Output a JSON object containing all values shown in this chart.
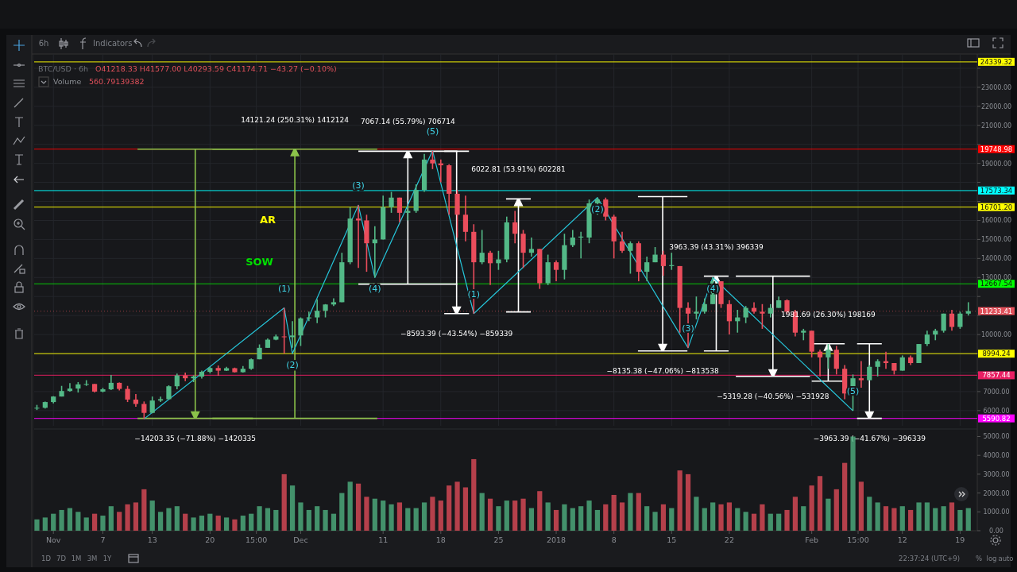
{
  "chart_data": [
    {
      "type": "candlestick",
      "title": "BTC/USD · 6h",
      "subtitle": "O41218.33 H41577.00 L40293.59 C41174.71 −43.27 (−0.10%)",
      "x": [
        "2017-10-30",
        "2017-10-31",
        "2017-11-01",
        "2017-11-02",
        "2017-11-03",
        "2017-11-04",
        "2017-11-05",
        "2017-11-06",
        "2017-11-07",
        "2017-11-08",
        "2017-11-09",
        "2017-11-10",
        "2017-11-11",
        "2017-11-12",
        "2017-11-13",
        "2017-11-14",
        "2017-11-15",
        "2017-11-16",
        "2017-11-17",
        "2017-11-18",
        "2017-11-19",
        "2017-11-20",
        "2017-11-21",
        "2017-11-22",
        "2017-11-23",
        "2017-11-24",
        "2017-11-25",
        "2017-11-26",
        "2017-11-27",
        "2017-11-28",
        "2017-11-29",
        "2017-11-30",
        "2017-12-01",
        "2017-12-02",
        "2017-12-03",
        "2017-12-04",
        "2017-12-05",
        "2017-12-06",
        "2017-12-07",
        "2017-12-08",
        "2017-12-09",
        "2017-12-10",
        "2017-12-11",
        "2017-12-12",
        "2017-12-13",
        "2017-12-14",
        "2017-12-15",
        "2017-12-16",
        "2017-12-17",
        "2017-12-18",
        "2017-12-19",
        "2017-12-20",
        "2017-12-21",
        "2017-12-22",
        "2017-12-23",
        "2017-12-24",
        "2017-12-25",
        "2017-12-26",
        "2017-12-27",
        "2017-12-28",
        "2017-12-29",
        "2017-12-30",
        "2017-12-31",
        "2018-01-01",
        "2018-01-02",
        "2018-01-03",
        "2018-01-04",
        "2018-01-05",
        "2018-01-06",
        "2018-01-07",
        "2018-01-08",
        "2018-01-09",
        "2018-01-10",
        "2018-01-11",
        "2018-01-12",
        "2018-01-13",
        "2018-01-14",
        "2018-01-15",
        "2018-01-16",
        "2018-01-17",
        "2018-01-18",
        "2018-01-19",
        "2018-01-20",
        "2018-01-21",
        "2018-01-22",
        "2018-01-23",
        "2018-01-24",
        "2018-01-25",
        "2018-01-26",
        "2018-01-27",
        "2018-01-28",
        "2018-01-29",
        "2018-01-30",
        "2018-01-31",
        "2018-02-01",
        "2018-02-02",
        "2018-02-03",
        "2018-02-04",
        "2018-02-05",
        "2018-02-06",
        "2018-02-07",
        "2018-02-08",
        "2018-02-09",
        "2018-02-10",
        "2018-02-11",
        "2018-02-12",
        "2018-02-13",
        "2018-02-14",
        "2018-02-15",
        "2018-02-16",
        "2018-02-17",
        "2018-02-18",
        "2018-02-19",
        "2018-02-20"
      ],
      "ohlc": [
        [
          6130,
          6300,
          6030,
          6150
        ],
        [
          6150,
          6470,
          6110,
          6450
        ],
        [
          6450,
          6760,
          6380,
          6740
        ],
        [
          6740,
          7300,
          6740,
          7030
        ],
        [
          7030,
          7450,
          7000,
          7160
        ],
        [
          7160,
          7500,
          6950,
          7380
        ],
        [
          7380,
          7600,
          7300,
          7400
        ],
        [
          7400,
          7400,
          6950,
          7000
        ],
        [
          7000,
          7200,
          6960,
          7120
        ],
        [
          7120,
          7870,
          7080,
          7460
        ],
        [
          7460,
          7480,
          7060,
          7140
        ],
        [
          7140,
          7300,
          6450,
          6580
        ],
        [
          6580,
          6870,
          6200,
          6350
        ],
        [
          6350,
          6480,
          5560,
          5880
        ],
        [
          5880,
          6740,
          5860,
          6530
        ],
        [
          6530,
          6740,
          6450,
          6600
        ],
        [
          6600,
          7330,
          6600,
          7280
        ],
        [
          7280,
          7950,
          7120,
          7850
        ],
        [
          7850,
          8000,
          7550,
          7700
        ],
        [
          7700,
          7850,
          7500,
          7790
        ],
        [
          7790,
          8100,
          7690,
          8040
        ],
        [
          8040,
          8290,
          7960,
          8240
        ],
        [
          8240,
          8370,
          7830,
          8100
        ],
        [
          8100,
          8300,
          8080,
          8230
        ],
        [
          8230,
          8260,
          8000,
          8020
        ],
        [
          8020,
          8340,
          8000,
          8200
        ],
        [
          8200,
          8740,
          8150,
          8700
        ],
        [
          8700,
          9480,
          8700,
          9300
        ],
        [
          9300,
          9800,
          9300,
          9730
        ],
        [
          9730,
          10000,
          9700,
          9900
        ],
        [
          9900,
          11400,
          9000,
          9860
        ],
        [
          9860,
          10700,
          9300,
          9950
        ],
        [
          9950,
          10900,
          9400,
          10850
        ],
        [
          10850,
          11200,
          10700,
          10900
        ],
        [
          10900,
          11850,
          10600,
          11250
        ],
        [
          11250,
          11600,
          10900,
          11580
        ],
        [
          11580,
          11900,
          11500,
          11700
        ],
        [
          11700,
          14300,
          11700,
          13800
        ],
        [
          13800,
          16700,
          13700,
          16100
        ],
        [
          16100,
          16800,
          13500,
          16000
        ],
        [
          16000,
          16300,
          13300,
          14800
        ],
        [
          14800,
          15700,
          13000,
          15000
        ],
        [
          15000,
          17300,
          15000,
          16700
        ],
        [
          16700,
          17500,
          16400,
          17200
        ],
        [
          17200,
          17200,
          15900,
          16400
        ],
        [
          16400,
          16800,
          16000,
          16500
        ],
        [
          16500,
          17900,
          16400,
          17600
        ],
        [
          17600,
          19500,
          17500,
          19200
        ],
        [
          19200,
          19666,
          18700,
          19000
        ],
        [
          19000,
          19200,
          18000,
          18900
        ],
        [
          18900,
          18950,
          16300,
          17400
        ],
        [
          17400,
          17600,
          15100,
          16300
        ],
        [
          16300,
          17300,
          14900,
          15400
        ],
        [
          15400,
          15800,
          11100,
          13800
        ],
        [
          13800,
          15500,
          13700,
          14300
        ],
        [
          14300,
          14400,
          12600,
          13750
        ],
        [
          13750,
          14400,
          13400,
          13950
        ],
        [
          13950,
          16200,
          13800,
          15900
        ],
        [
          15900,
          16500,
          14800,
          15300
        ],
        [
          15300,
          15500,
          13500,
          14300
        ],
        [
          14300,
          15100,
          14100,
          14500
        ],
        [
          14500,
          14500,
          12400,
          12700
        ],
        [
          12700,
          14200,
          12600,
          13800
        ],
        [
          13800,
          13900,
          12800,
          13400
        ],
        [
          13400,
          15300,
          12900,
          14700
        ],
        [
          14700,
          15500,
          14600,
          15100
        ],
        [
          15100,
          15400,
          14000,
          15150
        ],
        [
          15100,
          17100,
          14800,
          16900
        ],
        [
          16900,
          17200,
          16300,
          17100
        ],
        [
          17100,
          17200,
          16000,
          16200
        ],
        [
          16200,
          16300,
          14000,
          14900
        ],
        [
          14900,
          15400,
          14300,
          14400
        ],
        [
          14400,
          14900,
          13200,
          14800
        ],
        [
          14800,
          14900,
          12800,
          13300
        ],
        [
          13300,
          14100,
          12800,
          13800
        ],
        [
          13800,
          14600,
          13800,
          14200
        ],
        [
          14200,
          14400,
          13100,
          13600
        ],
        [
          13600,
          14300,
          13400,
          13650
        ],
        [
          13600,
          13600,
          10100,
          11400
        ],
        [
          11400,
          11700,
          9300,
          11100
        ],
        [
          11100,
          12000,
          10800,
          11200
        ],
        [
          11200,
          11900,
          11100,
          11600
        ],
        [
          11600,
          13000,
          11600,
          12800
        ],
        [
          12800,
          12800,
          11400,
          11600
        ],
        [
          11600,
          11800,
          10000,
          10700
        ],
        [
          10700,
          11300,
          10100,
          10900
        ],
        [
          10900,
          11500,
          10600,
          11400
        ],
        [
          11400,
          11700,
          11100,
          11200
        ],
        [
          11200,
          11600,
          10300,
          11100
        ],
        [
          11100,
          11600,
          10900,
          11400
        ],
        [
          11400,
          12000,
          11400,
          11800
        ],
        [
          11800,
          11850,
          11100,
          11200
        ],
        [
          11200,
          11300,
          9900,
          10100
        ],
        [
          10100,
          10300,
          9700,
          10200
        ],
        [
          10200,
          10200,
          8800,
          9100
        ],
        [
          9100,
          9200,
          7800,
          8800
        ],
        [
          8800,
          9500,
          8200,
          9200
        ],
        [
          9200,
          9400,
          7900,
          8200
        ],
        [
          8200,
          8400,
          6600,
          6900
        ],
        [
          6900,
          7900,
          5990,
          7700
        ],
        [
          7700,
          8600,
          7200,
          7600
        ],
        [
          7600,
          8400,
          7600,
          8300
        ],
        [
          8300,
          8700,
          7800,
          8600
        ],
        [
          8600,
          9100,
          8200,
          8500
        ],
        [
          8500,
          8500,
          7900,
          8100
        ],
        [
          8100,
          8900,
          8100,
          8800
        ],
        [
          8800,
          8900,
          8400,
          8500
        ],
        [
          8500,
          9500,
          8500,
          9500
        ],
        [
          9500,
          10200,
          9400,
          10000
        ],
        [
          10000,
          10300,
          9700,
          10200
        ],
        [
          10200,
          11100,
          10100,
          11100
        ],
        [
          11100,
          11300,
          10200,
          10400
        ],
        [
          10400,
          11200,
          10300,
          11100
        ],
        [
          11100,
          11700,
          11000,
          11233.41
        ]
      ],
      "series": [
        {
          "type": "line",
          "color": "#26c6da",
          "x": [
            "2017-11-12",
            "2017-11-29",
            "2017-11-30",
            "2017-12-08",
            "2017-12-10",
            "2017-12-17",
            "2017-12-22",
            "2018-01-06",
            "2018-01-17",
            "2018-01-20",
            "2018-02-06"
          ],
          "values": [
            5560,
            11400,
            9000,
            16800,
            13000,
            19670,
            11100,
            17200,
            9300,
            13000,
            5990
          ]
        }
      ],
      "xlim": [
        "2017-10-29T16:00",
        "2018-02-21T02:00"
      ],
      "xticks": [
        {
          "value": "2017-11-01",
          "label": null
        },
        {
          "value": "2017-11-07",
          "label": null
        },
        {
          "value": "2017-11-13",
          "label": null
        },
        {
          "value": "2017-11-20",
          "label": null
        },
        {
          "value": "2017-11-25T15:00",
          "label": null
        },
        {
          "value": "2017-12-01",
          "label": null
        },
        {
          "value": "2017-12-11",
          "label": null
        },
        {
          "value": "2017-12-18",
          "label": null
        },
        {
          "value": "2017-12-25",
          "label": null
        },
        {
          "value": "2018-01-01",
          "label": null
        },
        {
          "value": "2018-01-08",
          "label": null
        },
        {
          "value": "2018-01-15",
          "label": null
        },
        {
          "value": "2018-01-22",
          "label": null
        },
        {
          "value": "2018-02-01",
          "label": null
        },
        {
          "value": "2018-02-06T15:00",
          "label": null
        },
        {
          "value": "2018-02-12",
          "label": null
        },
        {
          "value": "2018-02-19",
          "label": null
        }
      ],
      "ylim": [
        5200,
        24750
      ],
      "yticks": [
        {
          "value": 6000,
          "label": "6000.00"
        },
        {
          "value": 7000,
          "label": "7000.00"
        },
        {
          "value": 8000,
          "label": null
        },
        {
          "value": 9000,
          "label": null
        },
        {
          "value": 10000,
          "label": "10000.00"
        },
        {
          "value": 11000,
          "label": null
        },
        {
          "value": 12000,
          "label": null
        },
        {
          "value": 13000,
          "label": "13000.00"
        },
        {
          "value": 14000,
          "label": "14000.00"
        },
        {
          "value": 15000,
          "label": "15000.00"
        },
        {
          "value": 16000,
          "label": "16000.00"
        },
        {
          "value": 17000,
          "label": null
        },
        {
          "value": 18000,
          "label": null
        },
        {
          "value": 19000,
          "label": "19000.00"
        },
        {
          "value": 20000,
          "label": null
        },
        {
          "value": 21000,
          "label": "21000.00"
        },
        {
          "value": 22000,
          "label": "22000.00"
        },
        {
          "value": 23000,
          "label": "23000.00"
        },
        {
          "value": 24000,
          "label": null
        }
      ],
      "tick_labels": "y",
      "grid": true,
      "ref_lines": [
        {
          "axis": "y",
          "value": 24339.32,
          "label": "24339.32",
          "color": "#ffff00"
        },
        {
          "axis": "y",
          "value": 19748.98,
          "label": "19748.98",
          "color": "#ff0000"
        },
        {
          "axis": "y",
          "value": 17573.34,
          "label": "17573.34",
          "color": "#00ffff"
        },
        {
          "axis": "y",
          "value": 16701.2,
          "label": "16701.20",
          "color": "#ffff00"
        },
        {
          "axis": "y",
          "value": 12667.54,
          "label": "12667.54",
          "color": "#00ff00"
        },
        {
          "axis": "y",
          "value": 11233.41,
          "label": "11233.41",
          "color": "#e0505a",
          "line_style": "dotted"
        },
        {
          "axis": "y",
          "value": 8994.24,
          "label": "8994.24",
          "color": "#ffff00"
        },
        {
          "axis": "y",
          "value": 7857.44,
          "label": "7857.44",
          "color": "#e91e63"
        },
        {
          "axis": "y",
          "value": 5590.82,
          "label": "5590.82",
          "color": "#ff00ff"
        }
      ],
      "annotations": [
        {
          "text": "(1)",
          "x": "2017-11-29",
          "y": 11400
        },
        {
          "text": "(2)",
          "x": "2017-11-30",
          "y": 9000
        },
        {
          "text": "(3)",
          "x": "2017-12-08",
          "y": 16800
        },
        {
          "text": "(4)",
          "x": "2017-12-10",
          "y": 13000
        },
        {
          "text": "(5)",
          "x": "2017-12-17",
          "y": 19670
        },
        {
          "text": "(1)",
          "x": "2017-12-22",
          "y": 11100
        },
        {
          "text": "(2)",
          "x": "2018-01-06",
          "y": 17200
        },
        {
          "text": "(3)",
          "x": "2018-01-17",
          "y": 9300
        },
        {
          "text": "(4)",
          "x": "2018-01-20",
          "y": 13000
        },
        {
          "text": "(5)",
          "x": "2018-02-06",
          "y": 5990
        },
        "14121.24 (250.31%) 1412124",
        "−14203.35 (−71.88%) −1420335",
        "7067.14 (55.79%) 706714",
        "−8593.39 (−43.54%) −859339",
        "6022.81 (53.91%) 602281",
        "3963.39 (43.31%) 396339",
        "−8135.38 (−47.06%) −813538",
        "−5319.28 (−40.56%) −531928",
        "1981.69 (26.30%) 198169",
        "−3963.39 (−41.67%) −396339",
        "AR",
        "SOW"
      ]
    },
    {
      "type": "bar",
      "title": "Volume",
      "subtitle": "560.79139382",
      "x": [
        "2017-10-30",
        "2017-10-31",
        "2017-11-01",
        "2017-11-02",
        "2017-11-03",
        "2017-11-04",
        "2017-11-05",
        "2017-11-06",
        "2017-11-07",
        "2017-11-08",
        "2017-11-09",
        "2017-11-10",
        "2017-11-11",
        "2017-11-12",
        "2017-11-13",
        "2017-11-14",
        "2017-11-15",
        "2017-11-16",
        "2017-11-17",
        "2017-11-18",
        "2017-11-19",
        "2017-11-20",
        "2017-11-21",
        "2017-11-22",
        "2017-11-23",
        "2017-11-24",
        "2017-11-25",
        "2017-11-26",
        "2017-11-27",
        "2017-11-28",
        "2017-11-29",
        "2017-11-30",
        "2017-12-01",
        "2017-12-02",
        "2017-12-03",
        "2017-12-04",
        "2017-12-05",
        "2017-12-06",
        "2017-12-07",
        "2017-12-08",
        "2017-12-09",
        "2017-12-10",
        "2017-12-11",
        "2017-12-12",
        "2017-12-13",
        "2017-12-14",
        "2017-12-15",
        "2017-12-16",
        "2017-12-17",
        "2017-12-18",
        "2017-12-19",
        "2017-12-20",
        "2017-12-21",
        "2017-12-22",
        "2017-12-23",
        "2017-12-24",
        "2017-12-25",
        "2017-12-26",
        "2017-12-27",
        "2017-12-28",
        "2017-12-29",
        "2017-12-30",
        "2017-12-31",
        "2018-01-01",
        "2018-01-02",
        "2018-01-03",
        "2018-01-04",
        "2018-01-05",
        "2018-01-06",
        "2018-01-07",
        "2018-01-08",
        "2018-01-09",
        "2018-01-10",
        "2018-01-11",
        "2018-01-12",
        "2018-01-13",
        "2018-01-14",
        "2018-01-15",
        "2018-01-16",
        "2018-01-17",
        "2018-01-18",
        "2018-01-19",
        "2018-01-20",
        "2018-01-21",
        "2018-01-22",
        "2018-01-23",
        "2018-01-24",
        "2018-01-25",
        "2018-01-26",
        "2018-01-27",
        "2018-01-28",
        "2018-01-29",
        "2018-01-30",
        "2018-01-31",
        "2018-02-01",
        "2018-02-02",
        "2018-02-03",
        "2018-02-04",
        "2018-02-05",
        "2018-02-06",
        "2018-02-07",
        "2018-02-08",
        "2018-02-09",
        "2018-02-10",
        "2018-02-11",
        "2018-02-12",
        "2018-02-13",
        "2018-02-14",
        "2018-02-15",
        "2018-02-16",
        "2018-02-17",
        "2018-02-18",
        "2018-02-19",
        "2018-02-20"
      ],
      "values": [
        600,
        700,
        900,
        1100,
        1200,
        1000,
        700,
        900,
        800,
        1300,
        1000,
        1400,
        1500,
        2200,
        1600,
        1000,
        1200,
        1300,
        900,
        700,
        800,
        900,
        800,
        700,
        600,
        800,
        900,
        1300,
        1200,
        1100,
        3000,
        2400,
        1500,
        1100,
        1300,
        1100,
        900,
        2000,
        2600,
        2500,
        1800,
        1700,
        1600,
        1400,
        1500,
        1200,
        1200,
        1500,
        1800,
        1600,
        2400,
        2600,
        2300,
        3800,
        2000,
        1700,
        1300,
        1600,
        1600,
        1700,
        1200,
        2100,
        1500,
        1100,
        1400,
        1200,
        1300,
        1600,
        1100,
        1400,
        1900,
        1500,
        2000,
        2000,
        1300,
        1000,
        1400,
        1200,
        3200,
        3000,
        1800,
        1200,
        1500,
        1400,
        1500,
        1200,
        1000,
        900,
        1400,
        900,
        900,
        1100,
        1800,
        1300,
        2400,
        2900,
        1700,
        2200,
        3600,
        5000,
        2600,
        1800,
        1500,
        1300,
        1200,
        1300,
        1100,
        1500,
        1500,
        1200,
        1300,
        1500,
        1100,
        1200
      ],
      "colors": [
        "#53b987",
        "#53b987",
        "#53b987",
        "#53b987",
        "#53b987",
        "#53b987",
        "#53b987",
        "#eb4d5c",
        "#53b987",
        "#53b987",
        "#eb4d5c",
        "#eb4d5c",
        "#eb4d5c",
        "#eb4d5c",
        "#53b987",
        "#53b987",
        "#53b987",
        "#53b987",
        "#eb4d5c",
        "#53b987",
        "#53b987",
        "#53b987",
        "#eb4d5c",
        "#53b987",
        "#eb4d5c",
        "#53b987",
        "#53b987",
        "#53b987",
        "#53b987",
        "#53b987",
        "#eb4d5c",
        "#53b987",
        "#53b987",
        "#53b987",
        "#53b987",
        "#53b987",
        "#53b987",
        "#53b987",
        "#53b987",
        "#eb4d5c",
        "#eb4d5c",
        "#53b987",
        "#53b987",
        "#53b987",
        "#eb4d5c",
        "#53b987",
        "#53b987",
        "#53b987",
        "#eb4d5c",
        "#eb4d5c",
        "#eb4d5c",
        "#eb4d5c",
        "#eb4d5c",
        "#eb4d5c",
        "#53b987",
        "#eb4d5c",
        "#53b987",
        "#53b987",
        "#eb4d5c",
        "#eb4d5c",
        "#53b987",
        "#eb4d5c",
        "#53b987",
        "#eb4d5c",
        "#53b987",
        "#53b987",
        "#53b987",
        "#53b987",
        "#53b987",
        "#eb4d5c",
        "#eb4d5c",
        "#eb4d5c",
        "#53b987",
        "#eb4d5c",
        "#53b987",
        "#53b987",
        "#eb4d5c",
        "#53b987",
        "#eb4d5c",
        "#eb4d5c",
        "#53b987",
        "#53b987",
        "#53b987",
        "#eb4d5c",
        "#eb4d5c",
        "#53b987",
        "#53b987",
        "#eb4d5c",
        "#eb4d5c",
        "#53b987",
        "#53b987",
        "#eb4d5c",
        "#eb4d5c",
        "#53b987",
        "#eb4d5c",
        "#eb4d5c",
        "#53b987",
        "#eb4d5c",
        "#eb4d5c",
        "#53b987",
        "#eb4d5c",
        "#53b987",
        "#53b987",
        "#eb4d5c",
        "#eb4d5c",
        "#53b987",
        "#eb4d5c",
        "#53b987",
        "#53b987",
        "#53b987",
        "#53b987",
        "#eb4d5c",
        "#53b987",
        "#53b987"
      ],
      "xlim": [
        "2017-10-29T16:00",
        "2018-02-21T02:00"
      ],
      "xticks": [
        {
          "value": "2017-11-01",
          "label": "Nov"
        },
        {
          "value": "2017-11-07",
          "label": "7"
        },
        {
          "value": "2017-11-13",
          "label": "13"
        },
        {
          "value": "2017-11-20",
          "label": "20"
        },
        {
          "value": "2017-11-25T15:00",
          "label": "15:00"
        },
        {
          "value": "2017-12-01",
          "label": "Dec"
        },
        {
          "value": "2017-12-11",
          "label": "11"
        },
        {
          "value": "2017-12-18",
          "label": "18"
        },
        {
          "value": "2017-12-25",
          "label": "25"
        },
        {
          "value": "2018-01-01",
          "label": "2018"
        },
        {
          "value": "2018-01-08",
          "label": "8"
        },
        {
          "value": "2018-01-15",
          "label": "15"
        },
        {
          "value": "2018-01-22",
          "label": "22"
        },
        {
          "value": "2018-02-01",
          "label": "Feb"
        },
        {
          "value": "2018-02-06T15:00",
          "label": "15:00"
        },
        {
          "value": "2018-02-12",
          "label": "12"
        },
        {
          "value": "2018-02-19",
          "label": "19"
        }
      ],
      "ylim": [
        0,
        5400
      ],
      "yticks": [
        {
          "value": 0,
          "label": "0.00"
        },
        {
          "value": 1000,
          "label": "1000.00"
        },
        {
          "value": 2000,
          "label": "2000.00"
        },
        {
          "value": 3000,
          "label": "3000.00"
        },
        {
          "value": 4000,
          "label": "4000.00"
        },
        {
          "value": 5000,
          "label": "5000.00"
        }
      ]
    },
    {
      "type": "other",
      "annotations": [
        "6h",
        "Indicators",
        "1D",
        "7D",
        "1M",
        "3M",
        "1Y",
        "22:37:24 (UTC+9)",
        "%",
        "log",
        "auto"
      ]
    }
  ]
}
